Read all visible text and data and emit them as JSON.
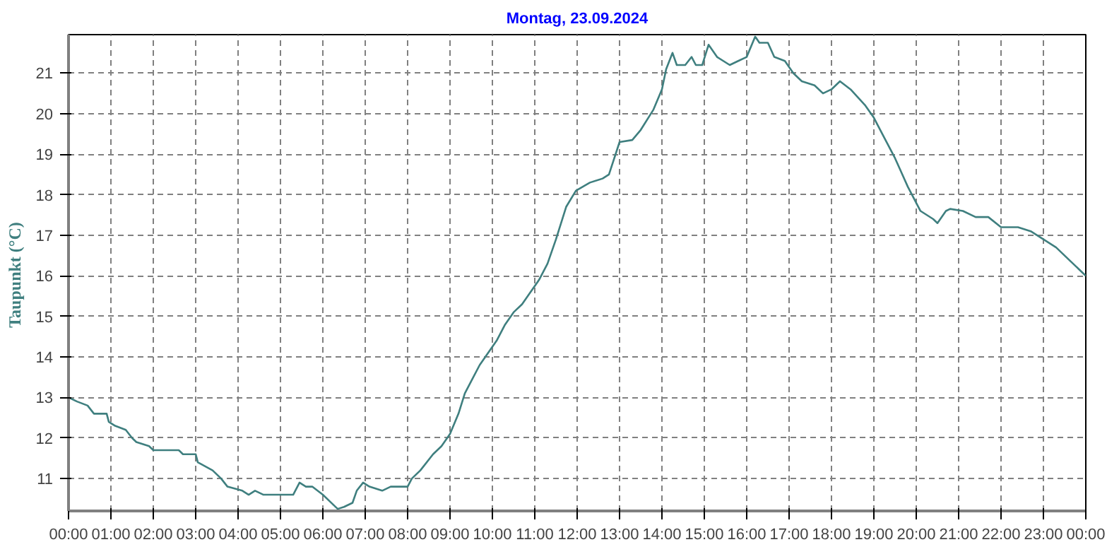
{
  "chart_data": {
    "type": "line",
    "title": "Montag, 23.09.2024",
    "ylabel": "Taupunkt  (°C)",
    "xlim": [
      0,
      24
    ],
    "ylim": [
      10.2,
      21.95
    ],
    "xticks": [
      {
        "value": 0,
        "label": "00:00"
      },
      {
        "value": 1,
        "label": "01:00"
      },
      {
        "value": 2,
        "label": "02:00"
      },
      {
        "value": 3,
        "label": "03:00"
      },
      {
        "value": 4,
        "label": "04:00"
      },
      {
        "value": 5,
        "label": "05:00"
      },
      {
        "value": 6,
        "label": "06:00"
      },
      {
        "value": 7,
        "label": "07:00"
      },
      {
        "value": 8,
        "label": "08:00"
      },
      {
        "value": 9,
        "label": "09:00"
      },
      {
        "value": 10,
        "label": "10:00"
      },
      {
        "value": 11,
        "label": "11:00"
      },
      {
        "value": 12,
        "label": "12:00"
      },
      {
        "value": 13,
        "label": "13:00"
      },
      {
        "value": 14,
        "label": "14:00"
      },
      {
        "value": 15,
        "label": "15:00"
      },
      {
        "value": 16,
        "label": "16:00"
      },
      {
        "value": 17,
        "label": "17:00"
      },
      {
        "value": 18,
        "label": "18:00"
      },
      {
        "value": 19,
        "label": "19:00"
      },
      {
        "value": 20,
        "label": "20:00"
      },
      {
        "value": 21,
        "label": "21:00"
      },
      {
        "value": 22,
        "label": "22:00"
      },
      {
        "value": 23,
        "label": "23:00"
      },
      {
        "value": 24,
        "label": "00:00"
      }
    ],
    "yticks": [
      11,
      12,
      13,
      14,
      15,
      16,
      17,
      18,
      19,
      20,
      21
    ],
    "grid": true,
    "line_style": "solid",
    "series": [
      {
        "color": "#3f7f7f",
        "x": [
          0,
          0.2,
          0.45,
          0.6,
          0.9,
          0.95,
          1.1,
          1.35,
          1.5,
          1.6,
          1.9,
          2.0,
          2.6,
          2.7,
          3.0,
          3.05,
          3.4,
          3.6,
          3.75,
          4.1,
          4.25,
          4.4,
          4.6,
          5.3,
          5.45,
          5.6,
          5.75,
          6.0,
          6.15,
          6.35,
          6.5,
          6.7,
          6.8,
          6.95,
          7.1,
          7.4,
          7.6,
          8.0,
          8.1,
          8.3,
          8.6,
          8.8,
          9.0,
          9.2,
          9.35,
          9.5,
          9.7,
          9.9,
          10.1,
          10.3,
          10.5,
          10.7,
          10.9,
          11.1,
          11.3,
          11.5,
          11.74,
          11.97,
          12.3,
          12.6,
          12.75,
          13.0,
          13.3,
          13.5,
          13.8,
          14.0,
          14.1,
          14.25,
          14.35,
          14.55,
          14.7,
          14.8,
          14.95,
          15.1,
          15.3,
          15.6,
          15.8,
          16.0,
          16.2,
          16.3,
          16.5,
          16.65,
          16.9,
          17.1,
          17.3,
          17.6,
          17.8,
          18.0,
          18.2,
          18.45,
          18.8,
          19.0,
          19.2,
          19.5,
          19.8,
          20.1,
          20.4,
          20.5,
          20.7,
          20.8,
          21.1,
          21.4,
          21.7,
          22.0,
          22.4,
          22.7,
          23.0,
          23.3,
          23.6,
          24.0
        ],
        "values": [
          13.0,
          12.9,
          12.8,
          12.6,
          12.6,
          12.4,
          12.3,
          12.2,
          12.0,
          11.9,
          11.8,
          11.7,
          11.7,
          11.6,
          11.6,
          11.4,
          11.2,
          11.0,
          10.8,
          10.7,
          10.6,
          10.7,
          10.6,
          10.6,
          10.9,
          10.8,
          10.8,
          10.6,
          10.45,
          10.25,
          10.3,
          10.4,
          10.7,
          10.9,
          10.8,
          10.7,
          10.8,
          10.8,
          11.0,
          11.2,
          11.6,
          11.8,
          12.1,
          12.6,
          13.1,
          13.4,
          13.8,
          14.1,
          14.4,
          14.8,
          15.1,
          15.3,
          15.6,
          15.9,
          16.3,
          16.9,
          17.7,
          18.1,
          18.3,
          18.4,
          18.5,
          19.3,
          19.35,
          19.6,
          20.1,
          20.6,
          21.1,
          21.5,
          21.2,
          21.2,
          21.4,
          21.2,
          21.2,
          21.7,
          21.4,
          21.2,
          21.3,
          21.4,
          21.9,
          21.75,
          21.75,
          21.4,
          21.3,
          21.0,
          20.8,
          20.7,
          20.5,
          20.6,
          20.8,
          20.6,
          20.2,
          19.9,
          19.5,
          18.9,
          18.2,
          17.6,
          17.4,
          17.3,
          17.6,
          17.65,
          17.6,
          17.45,
          17.45,
          17.2,
          17.2,
          17.1,
          16.9,
          16.7,
          16.4,
          16.0
        ]
      }
    ]
  }
}
